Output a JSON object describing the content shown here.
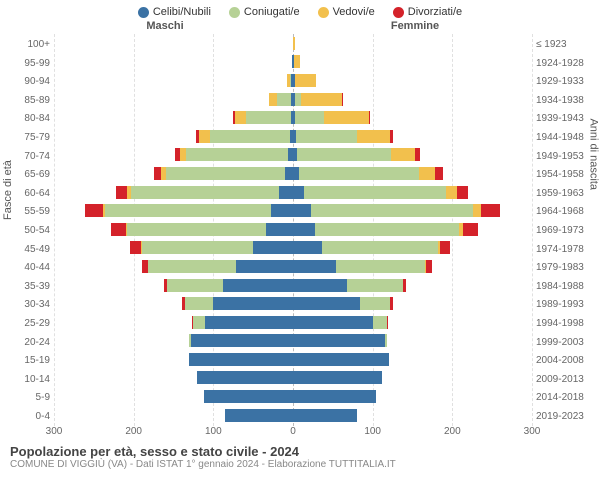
{
  "legend": [
    {
      "label": "Celibi/Nubili",
      "color": "#3b72a4"
    },
    {
      "label": "Coniugati/e",
      "color": "#b6d196"
    },
    {
      "label": "Vedovi/e",
      "color": "#f2c04d"
    },
    {
      "label": "Divorziati/e",
      "color": "#d4222a"
    }
  ],
  "gender": {
    "male": "Maschi",
    "female": "Femmine"
  },
  "axis_labels": {
    "left": "Fasce di età",
    "right": "Anni di nascita"
  },
  "age_groups": [
    "100+",
    "95-99",
    "90-94",
    "85-89",
    "80-84",
    "75-79",
    "70-74",
    "65-69",
    "60-64",
    "55-59",
    "50-54",
    "45-49",
    "40-44",
    "35-39",
    "30-34",
    "25-29",
    "20-24",
    "15-19",
    "10-14",
    "5-9",
    "0-4"
  ],
  "birth_years": [
    "≤ 1923",
    "1924-1928",
    "1929-1933",
    "1934-1938",
    "1939-1943",
    "1944-1948",
    "1949-1953",
    "1954-1958",
    "1959-1963",
    "1964-1968",
    "1969-1973",
    "1974-1978",
    "1979-1983",
    "1984-1988",
    "1989-1993",
    "1994-1998",
    "1999-2003",
    "2004-2008",
    "2009-2013",
    "2014-2018",
    "2019-2023"
  ],
  "xmax": 300,
  "xticks_left": [
    300,
    200,
    100,
    0
  ],
  "xticks_right": [
    0,
    100,
    200,
    300
  ],
  "colors": {
    "single": "#3b72a4",
    "married": "#b6d196",
    "widowed": "#f2c04d",
    "divorced": "#d4222a",
    "grid": "#e0e0e0",
    "centerline": "#bbbbbb"
  },
  "data": {
    "male": [
      {
        "single": 0,
        "married": 0,
        "widowed": 0,
        "divorced": 0
      },
      {
        "single": 1,
        "married": 0,
        "widowed": 0,
        "divorced": 0
      },
      {
        "single": 2,
        "married": 2,
        "widowed": 3,
        "divorced": 0
      },
      {
        "single": 2,
        "married": 18,
        "widowed": 10,
        "divorced": 0
      },
      {
        "single": 3,
        "married": 56,
        "widowed": 14,
        "divorced": 2
      },
      {
        "single": 4,
        "married": 100,
        "widowed": 14,
        "divorced": 4
      },
      {
        "single": 6,
        "married": 128,
        "widowed": 8,
        "divorced": 6
      },
      {
        "single": 10,
        "married": 150,
        "widowed": 6,
        "divorced": 8
      },
      {
        "single": 18,
        "married": 186,
        "widowed": 4,
        "divorced": 14
      },
      {
        "single": 28,
        "married": 208,
        "widowed": 3,
        "divorced": 22
      },
      {
        "single": 34,
        "married": 174,
        "widowed": 2,
        "divorced": 18
      },
      {
        "single": 50,
        "married": 140,
        "widowed": 1,
        "divorced": 14
      },
      {
        "single": 72,
        "married": 110,
        "widowed": 0,
        "divorced": 8
      },
      {
        "single": 88,
        "married": 70,
        "widowed": 0,
        "divorced": 4
      },
      {
        "single": 100,
        "married": 36,
        "widowed": 0,
        "divorced": 3
      },
      {
        "single": 110,
        "married": 16,
        "widowed": 0,
        "divorced": 1
      },
      {
        "single": 128,
        "married": 2,
        "widowed": 0,
        "divorced": 0
      },
      {
        "single": 130,
        "married": 0,
        "widowed": 0,
        "divorced": 0
      },
      {
        "single": 120,
        "married": 0,
        "widowed": 0,
        "divorced": 0
      },
      {
        "single": 112,
        "married": 0,
        "widowed": 0,
        "divorced": 0
      },
      {
        "single": 85,
        "married": 0,
        "widowed": 0,
        "divorced": 0
      }
    ],
    "female": [
      {
        "single": 0,
        "married": 0,
        "widowed": 2,
        "divorced": 0
      },
      {
        "single": 1,
        "married": 0,
        "widowed": 8,
        "divorced": 0
      },
      {
        "single": 2,
        "married": 1,
        "widowed": 26,
        "divorced": 0
      },
      {
        "single": 2,
        "married": 8,
        "widowed": 52,
        "divorced": 1
      },
      {
        "single": 3,
        "married": 36,
        "widowed": 56,
        "divorced": 2
      },
      {
        "single": 4,
        "married": 76,
        "widowed": 42,
        "divorced": 4
      },
      {
        "single": 5,
        "married": 118,
        "widowed": 30,
        "divorced": 6
      },
      {
        "single": 8,
        "married": 150,
        "widowed": 20,
        "divorced": 10
      },
      {
        "single": 14,
        "married": 178,
        "widowed": 14,
        "divorced": 14
      },
      {
        "single": 22,
        "married": 204,
        "widowed": 10,
        "divorced": 24
      },
      {
        "single": 28,
        "married": 180,
        "widowed": 6,
        "divorced": 18
      },
      {
        "single": 36,
        "married": 146,
        "widowed": 3,
        "divorced": 12
      },
      {
        "single": 54,
        "married": 112,
        "widowed": 1,
        "divorced": 8
      },
      {
        "single": 68,
        "married": 70,
        "widowed": 0,
        "divorced": 4
      },
      {
        "single": 84,
        "married": 38,
        "widowed": 0,
        "divorced": 3
      },
      {
        "single": 100,
        "married": 18,
        "widowed": 0,
        "divorced": 1
      },
      {
        "single": 115,
        "married": 3,
        "widowed": 0,
        "divorced": 0
      },
      {
        "single": 120,
        "married": 0,
        "widowed": 0,
        "divorced": 0
      },
      {
        "single": 112,
        "married": 0,
        "widowed": 0,
        "divorced": 0
      },
      {
        "single": 104,
        "married": 0,
        "widowed": 0,
        "divorced": 0
      },
      {
        "single": 80,
        "married": 0,
        "widowed": 0,
        "divorced": 0
      }
    ]
  },
  "footer": {
    "title": "Popolazione per età, sesso e stato civile - 2024",
    "subtitle": "COMUNE DI VIGGIÙ (VA) - Dati ISTAT 1° gennaio 2024 - Elaborazione TUTTITALIA.IT"
  }
}
